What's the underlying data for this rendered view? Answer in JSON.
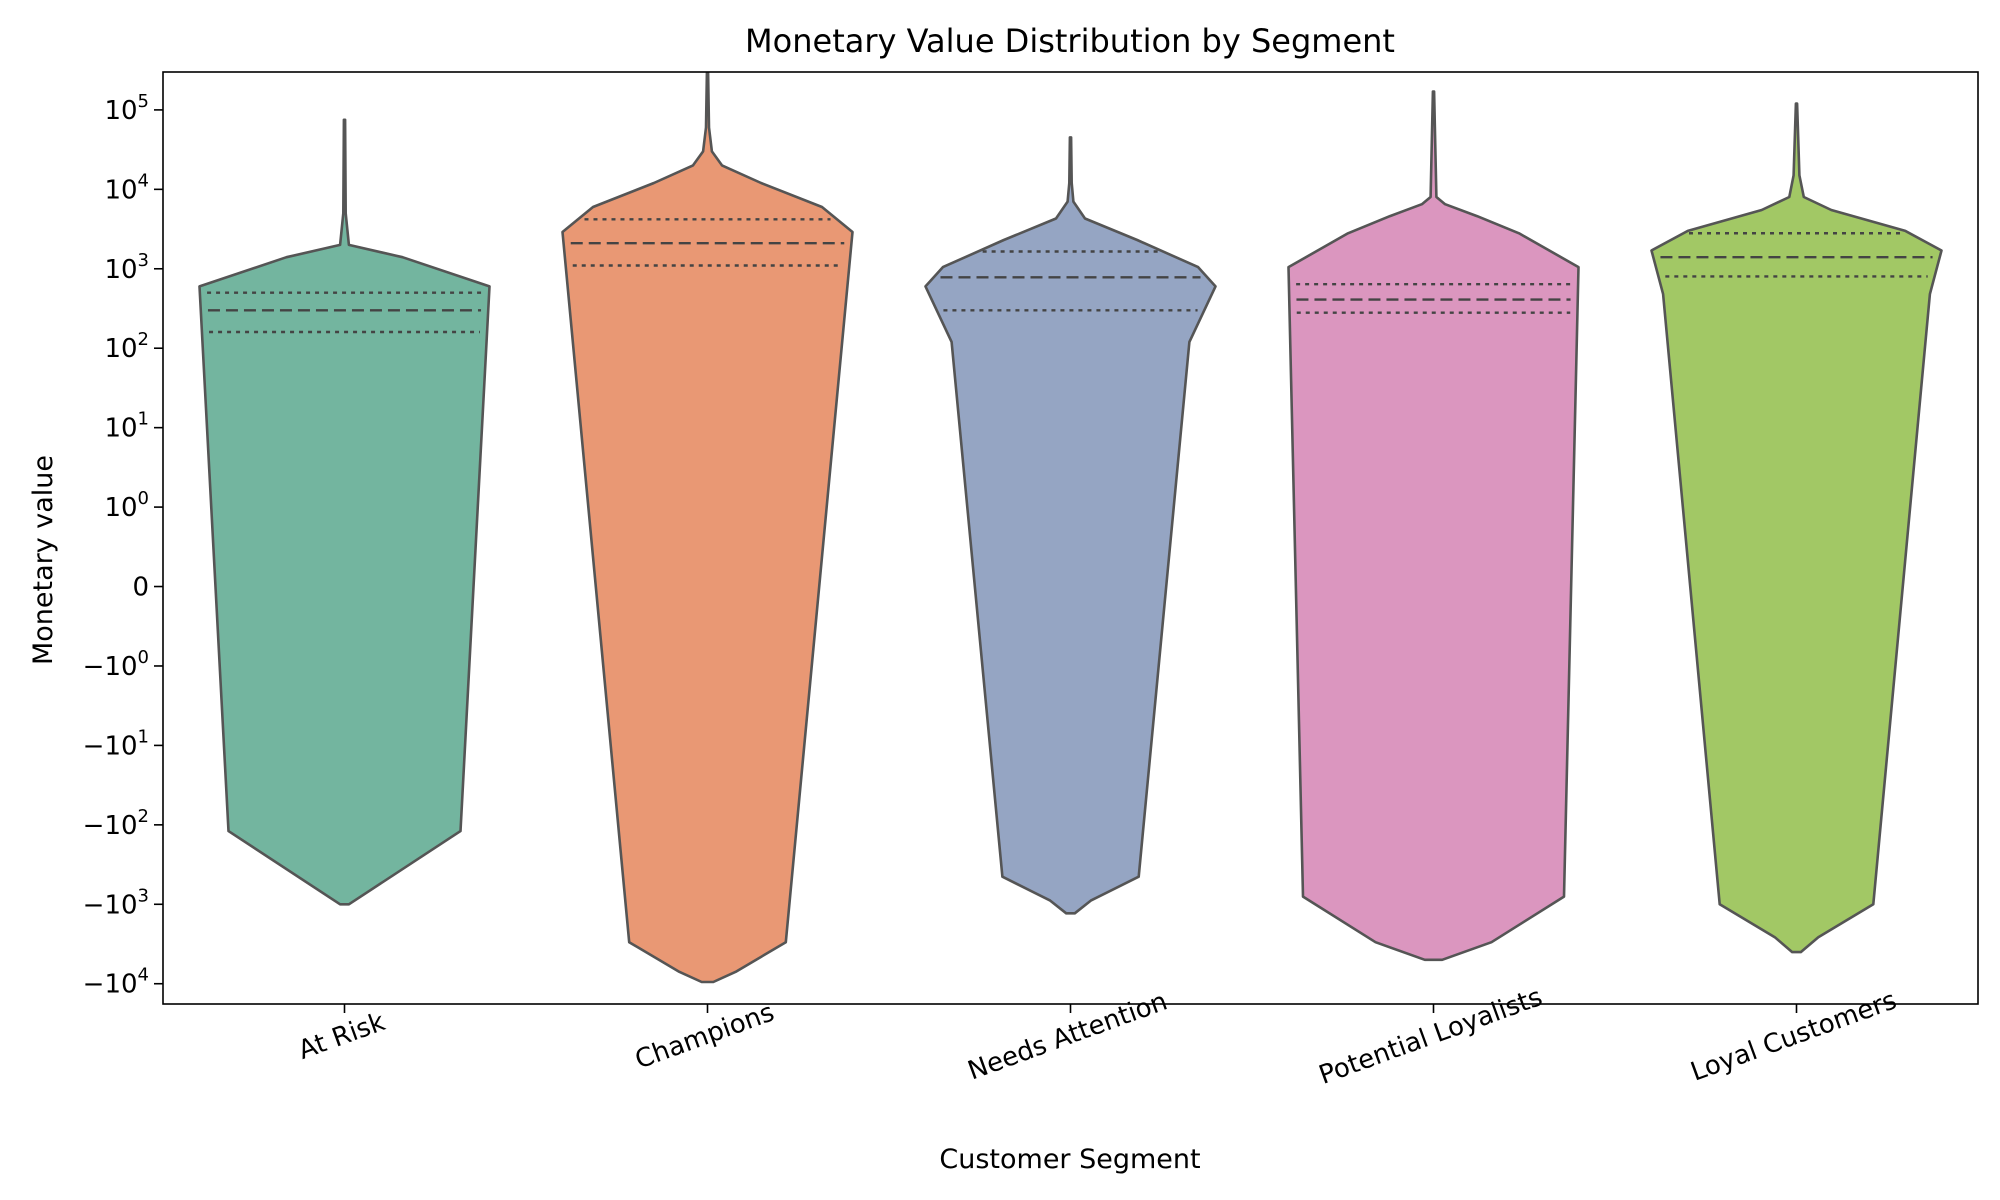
{
  "chart_data": {
    "type": "violin",
    "title": "Monetary Value Distribution by Segment",
    "xlabel": "Customer Segment",
    "ylabel": "Monetary value",
    "yscale": "symlog",
    "ylim": [
      -18000,
      300000
    ],
    "ytick_values": [
      100000,
      10000,
      1000,
      100,
      10,
      1,
      0,
      -1,
      -10,
      -100,
      -1000,
      -10000
    ],
    "ytick_labels": [
      {
        "base": "10",
        "exp": "5"
      },
      {
        "base": "10",
        "exp": "4"
      },
      {
        "base": "10",
        "exp": "3"
      },
      {
        "base": "10",
        "exp": "2"
      },
      {
        "base": "10",
        "exp": "1"
      },
      {
        "base": "10",
        "exp": "0"
      },
      {
        "base": "0",
        "exp": ""
      },
      {
        "base": "−10",
        "exp": "0"
      },
      {
        "base": "−10",
        "exp": "1"
      },
      {
        "base": "−10",
        "exp": "2"
      },
      {
        "base": "−10",
        "exp": "3"
      },
      {
        "base": "−10",
        "exp": "4"
      }
    ],
    "grid": false,
    "legend": "none",
    "categories": [
      "At Risk",
      "Champions",
      "Needs Attention",
      "Potential Loyalists",
      "Loyal Customers"
    ],
    "colors": [
      "#73b59f",
      "#e99874",
      "#95a5c3",
      "#db96bf",
      "#a2c865"
    ],
    "outline_color": "#555555",
    "series": [
      {
        "category": "At Risk",
        "min": -1000,
        "max": 75000,
        "q1": 160,
        "median": 300,
        "q3": 500,
        "profile": [
          [
            -1000,
            0.03
          ],
          [
            -120,
            0.8
          ],
          [
            600,
            1.0
          ],
          [
            1400,
            0.4
          ],
          [
            2000,
            0.03
          ],
          [
            5000,
            0.008
          ],
          [
            75000,
            0.004
          ]
        ]
      },
      {
        "category": "Champions",
        "min": -9500,
        "max": 290000,
        "q1": 1100,
        "median": 2100,
        "q3": 4200,
        "profile": [
          [
            -9500,
            0.04
          ],
          [
            -7000,
            0.2
          ],
          [
            -3000,
            0.54
          ],
          [
            2900,
            1.0
          ],
          [
            6000,
            0.79
          ],
          [
            12000,
            0.37
          ],
          [
            20000,
            0.1
          ],
          [
            30000,
            0.03
          ],
          [
            60000,
            0.01
          ],
          [
            290000,
            0.004
          ]
        ]
      },
      {
        "category": "Needs Attention",
        "min": -1300,
        "max": 45000,
        "q1": 300,
        "median": 780,
        "q3": 1650,
        "profile": [
          [
            -1300,
            0.03
          ],
          [
            -900,
            0.14
          ],
          [
            -450,
            0.47
          ],
          [
            120,
            0.82
          ],
          [
            600,
            1.0
          ],
          [
            1050,
            0.88
          ],
          [
            2300,
            0.46
          ],
          [
            4300,
            0.1
          ],
          [
            7000,
            0.02
          ],
          [
            12000,
            0.008
          ],
          [
            45000,
            0.004
          ]
        ]
      },
      {
        "category": "Potential Loyalists",
        "min": -5000,
        "max": 170000,
        "q1": 280,
        "median": 410,
        "q3": 640,
        "profile": [
          [
            -5000,
            0.06
          ],
          [
            -3000,
            0.4
          ],
          [
            -800,
            0.9
          ],
          [
            1050,
            1.0
          ],
          [
            2800,
            0.59
          ],
          [
            4600,
            0.3
          ],
          [
            6500,
            0.08
          ],
          [
            8000,
            0.02
          ],
          [
            170000,
            0.004
          ]
        ]
      },
      {
        "category": "Loyal Customers",
        "min": -4000,
        "max": 120000,
        "q1": 800,
        "median": 1400,
        "q3": 2800,
        "profile": [
          [
            -4000,
            0.03
          ],
          [
            -2600,
            0.15
          ],
          [
            -1000,
            0.53
          ],
          [
            480,
            0.92
          ],
          [
            1700,
            1.0
          ],
          [
            3000,
            0.75
          ],
          [
            5500,
            0.24
          ],
          [
            8000,
            0.05
          ],
          [
            15000,
            0.02
          ],
          [
            120000,
            0.004
          ]
        ]
      }
    ]
  }
}
